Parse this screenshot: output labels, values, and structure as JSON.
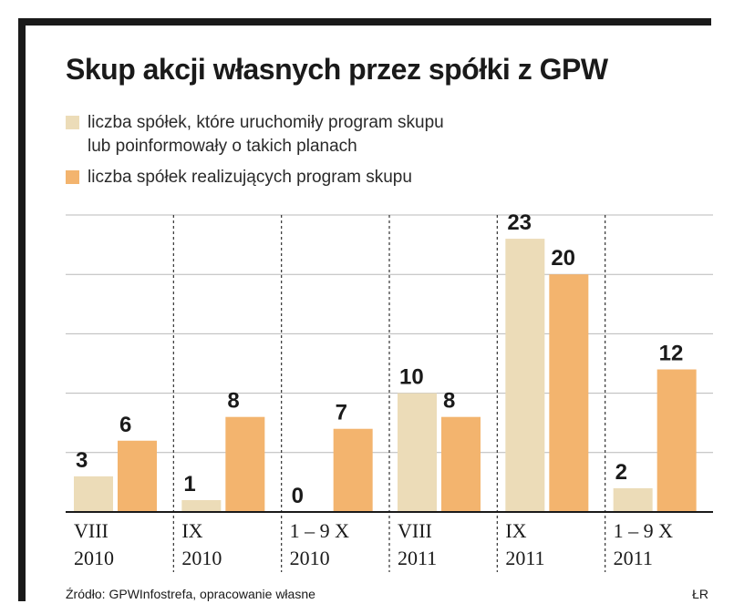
{
  "title": "Skup akcji własnych przez spółki z GPW",
  "legend": [
    {
      "lines": [
        "liczba spółek, które uruchomiły program skupu",
        "lub poinformowały o takich planach"
      ],
      "color": "#ecdcb8"
    },
    {
      "lines": [
        "liczba spółek realizujących program skupu"
      ],
      "color": "#f3b46e"
    }
  ],
  "source": "Źródło: GPWInfostrefa, opracowanie własne",
  "author": "ŁR",
  "chart_data": {
    "type": "bar",
    "title": "Skup akcji własnych przez spółki z GPW",
    "categories": [
      [
        "VIII",
        "2010"
      ],
      [
        "IX",
        "2010"
      ],
      [
        "1 – 9 X",
        "2010"
      ],
      [
        "VIII",
        "2011"
      ],
      [
        "IX",
        "2011"
      ],
      [
        "1 – 9 X",
        "2011"
      ]
    ],
    "series": [
      {
        "name": "liczba spółek, które uruchomiły program skupu lub poinformowały o takich planach",
        "values": [
          3,
          1,
          0,
          10,
          23,
          2
        ],
        "color": "#ecdcb8"
      },
      {
        "name": "liczba spółek realizujących program skupu",
        "values": [
          6,
          8,
          7,
          8,
          20,
          12
        ],
        "color": "#f3b46e"
      }
    ],
    "ylim": [
      0,
      25
    ],
    "grid": true,
    "legend_position": "top-left"
  }
}
